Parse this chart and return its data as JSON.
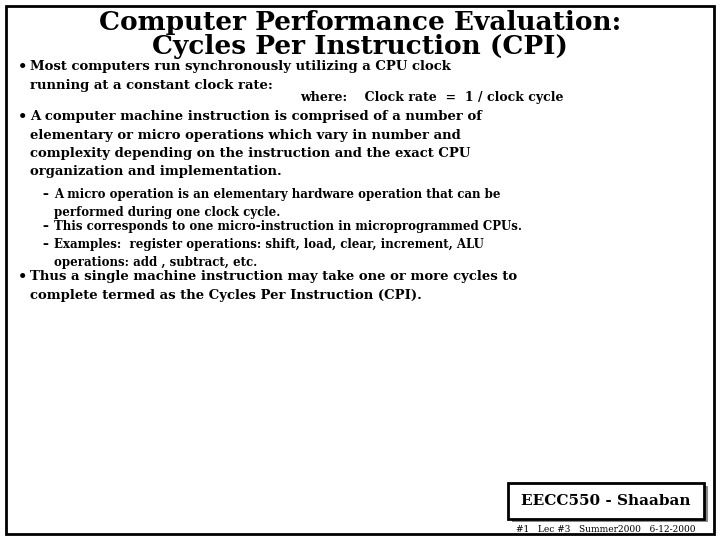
{
  "title_line1": "Computer Performance Evaluation:",
  "title_line2": "Cycles Per Instruction (CPI)",
  "bg_color": "#ffffff",
  "border_color": "#000000",
  "text_color": "#000000",
  "bullet1_text": "Most computers run synchronously utilizing a CPU clock\nrunning at a constant clock rate:",
  "where_line": "where:    Clock rate  =  1 / clock cycle",
  "bullet2_text": "A computer machine instruction is comprised of a number of\nelementary or micro operations which vary in number and\ncomplexity depending on the instruction and the exact CPU\norganization and implementation.",
  "sub1": "A micro operation is an elementary hardware operation that can be\nperformed during one clock cycle.",
  "sub2": "This corresponds to one micro-instruction in microprogrammed CPUs.",
  "sub3": "Examples:  register operations: shift, load, clear, increment, ALU\noperations: add , subtract, etc.",
  "bullet3_text": "Thus a single machine instruction may take one or more cycles to\ncomplete termed as the Cycles Per Instruction (CPI).",
  "footer_box": "EECC550 - Shaaban",
  "footer_small": "#1   Lec #3   Summer2000   6-12-2000",
  "title_fontsize": 19,
  "body_fontsize": 9.5,
  "where_fontsize": 9.0,
  "sub_fontsize": 8.5,
  "footer_fontsize": 11,
  "footer_small_fontsize": 6.5
}
